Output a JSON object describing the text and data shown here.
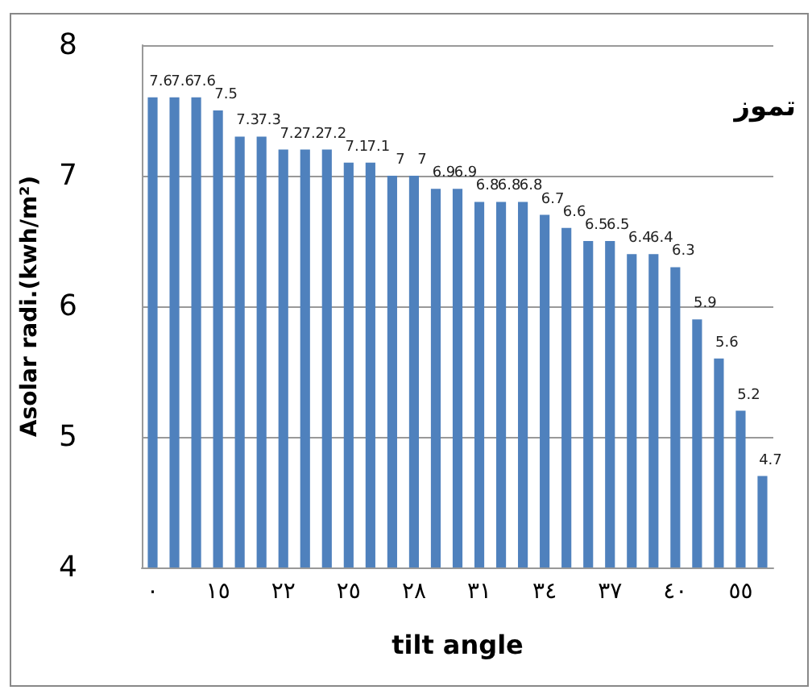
{
  "chart_data": {
    "type": "bar",
    "xlabel": "tilt angle",
    "ylabel": "Asolar radi.(kwh/m²)",
    "annotations": [
      "تموز"
    ],
    "categories": [
      "٠",
      null,
      null,
      "١٥",
      null,
      null,
      "٢٢",
      null,
      null,
      "٢٥",
      null,
      null,
      "٢٨",
      null,
      null,
      "٣١",
      null,
      null,
      "٣٤",
      null,
      null,
      "٣٧",
      null,
      null,
      "٤٠",
      null,
      null,
      "٥٥",
      null
    ],
    "values": [
      7.6,
      7.6,
      7.6,
      7.5,
      7.3,
      7.3,
      7.2,
      7.2,
      7.2,
      7.1,
      7.1,
      7,
      7,
      6.9,
      6.9,
      6.8,
      6.8,
      6.8,
      6.7,
      6.6,
      6.5,
      6.5,
      6.4,
      6.4,
      6.3,
      5.9,
      5.6,
      5.2,
      4.7
    ],
    "color": "#4f81bd",
    "ylim": [
      4,
      8
    ],
    "yticks": [
      4,
      5,
      6,
      7,
      8
    ],
    "grid": "y",
    "data_labels": true
  }
}
